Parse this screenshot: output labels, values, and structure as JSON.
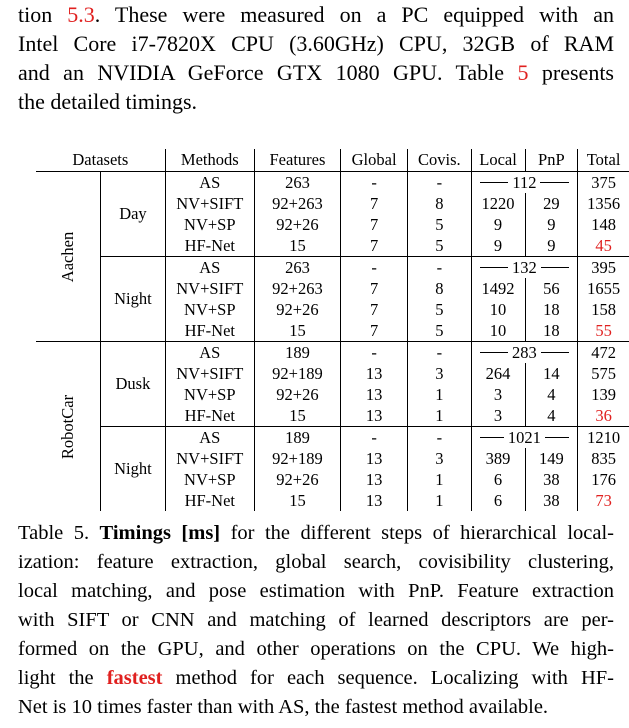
{
  "paragraph": {
    "l1_a": "tion ",
    "l1_ref": "5.3",
    "l1_b": ". These were measured on a PC equipped with an",
    "l2": "Intel Core i7-7820X CPU (3.60GHz) CPU, 32GB of RAM",
    "l3_a": "and an NVIDIA GeForce GTX 1080 GPU. Table ",
    "l3_ref": "5",
    "l3_b": " presents",
    "l4": "the detailed timings."
  },
  "table": {
    "headers": [
      "Datasets",
      "Methods",
      "Features",
      "Global",
      "Covis.",
      "Local",
      "PnP",
      "Total"
    ],
    "datasets": [
      {
        "name": "Aachen",
        "sequences": [
          {
            "name": "Day",
            "rows": [
              {
                "method": "AS",
                "bold": false,
                "features": "263",
                "global": "-",
                "covis": "-",
                "local_pnp": "112",
                "total": "375",
                "fastest": false
              },
              {
                "method": "NV+SIFT",
                "bold": false,
                "features": "92+263",
                "global": "7",
                "covis": "8",
                "local": "1220",
                "pnp": "29",
                "total": "1356",
                "fastest": false
              },
              {
                "method": "NV+SP",
                "bold": true,
                "features": "92+26",
                "global": "7",
                "covis": "5",
                "local": "9",
                "pnp": "9",
                "total": "148",
                "fastest": false
              },
              {
                "method": "HF-Net",
                "bold": true,
                "features": "15",
                "global": "7",
                "covis": "5",
                "local": "9",
                "pnp": "9",
                "total": "45",
                "fastest": true
              }
            ]
          },
          {
            "name": "Night",
            "rows": [
              {
                "method": "AS",
                "bold": false,
                "features": "263",
                "global": "-",
                "covis": "-",
                "local_pnp": "132",
                "total": "395",
                "fastest": false
              },
              {
                "method": "NV+SIFT",
                "bold": false,
                "features": "92+263",
                "global": "7",
                "covis": "8",
                "local": "1492",
                "pnp": "56",
                "total": "1655",
                "fastest": false
              },
              {
                "method": "NV+SP",
                "bold": true,
                "features": "92+26",
                "global": "7",
                "covis": "5",
                "local": "10",
                "pnp": "18",
                "total": "158",
                "fastest": false
              },
              {
                "method": "HF-Net",
                "bold": true,
                "features": "15",
                "global": "7",
                "covis": "5",
                "local": "10",
                "pnp": "18",
                "total": "55",
                "fastest": true
              }
            ]
          }
        ]
      },
      {
        "name": "RobotCar",
        "sequences": [
          {
            "name": "Dusk",
            "rows": [
              {
                "method": "AS",
                "bold": false,
                "features": "189",
                "global": "-",
                "covis": "-",
                "local_pnp": "283",
                "total": "472",
                "fastest": false
              },
              {
                "method": "NV+SIFT",
                "bold": false,
                "features": "92+189",
                "global": "13",
                "covis": "3",
                "local": "264",
                "pnp": "14",
                "total": "575",
                "fastest": false
              },
              {
                "method": "NV+SP",
                "bold": true,
                "features": "92+26",
                "global": "13",
                "covis": "1",
                "local": "3",
                "pnp": "4",
                "total": "139",
                "fastest": false
              },
              {
                "method": "HF-Net",
                "bold": true,
                "features": "15",
                "global": "13",
                "covis": "1",
                "local": "3",
                "pnp": "4",
                "total": "36",
                "fastest": true
              }
            ]
          },
          {
            "name": "Night",
            "rows": [
              {
                "method": "AS",
                "bold": false,
                "features": "189",
                "global": "-",
                "covis": "-",
                "local_pnp": "1021",
                "total": "1210",
                "fastest": false
              },
              {
                "method": "NV+SIFT",
                "bold": false,
                "features": "92+189",
                "global": "13",
                "covis": "3",
                "local": "389",
                "pnp": "149",
                "total": "835",
                "fastest": false
              },
              {
                "method": "NV+SP",
                "bold": true,
                "features": "92+26",
                "global": "13",
                "covis": "1",
                "local": "6",
                "pnp": "38",
                "total": "176",
                "fastest": false
              },
              {
                "method": "HF-Net",
                "bold": true,
                "features": "15",
                "global": "13",
                "covis": "1",
                "local": "6",
                "pnp": "38",
                "total": "73",
                "fastest": true
              }
            ]
          }
        ]
      }
    ]
  },
  "caption": {
    "label": "Table 5.",
    "title": "Timings [ms]",
    "l1_rest": " for the different steps of hierarchical local-",
    "l2": "ization: feature extraction, global search, covisibility clustering,",
    "l3": "local matching, and pose estimation with PnP. Feature extraction",
    "l4": "with SIFT or CNN and matching of learned descriptors are per-",
    "l5": "formed on the GPU, and other operations on the CPU. We high-",
    "l6_a": "light the ",
    "l6_fastest": "fastest",
    "l6_b": " method for each sequence. Localizing with HF-",
    "l7": "Net is 10 times faster than with AS, the fastest method available."
  },
  "colors": {
    "highlight": "#e0201f",
    "text": "#000000"
  }
}
